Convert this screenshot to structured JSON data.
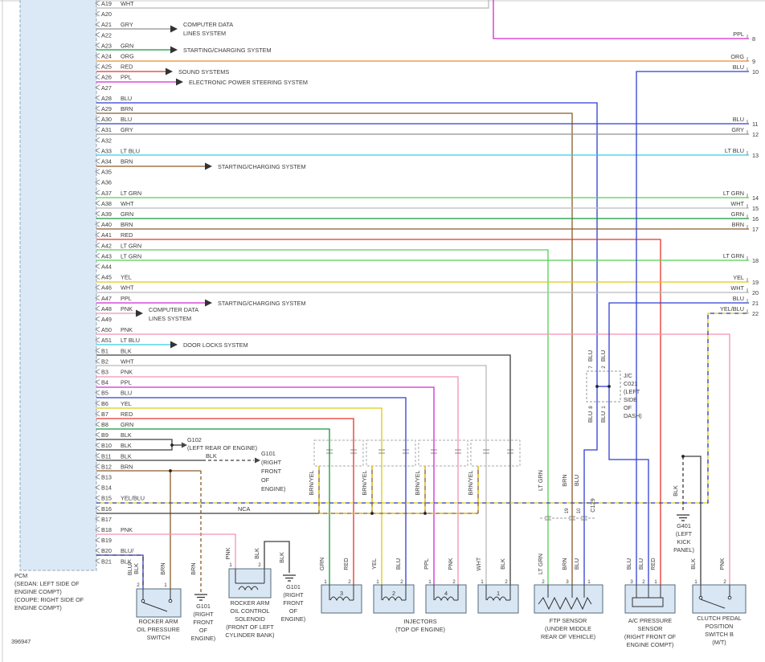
{
  "diagram_id": "396947",
  "pcm_caption": [
    "PCM",
    "(SEDAN: LEFT SIDE OF",
    "ENGINE COMPT)",
    "(COUPE: RIGHT SIDE OF",
    "ENGINE COMPT)"
  ],
  "pins": [
    {
      "pin": "A19",
      "color": "WHT"
    },
    {
      "pin": "A20",
      "color": ""
    },
    {
      "pin": "A21",
      "color": "GRY"
    },
    {
      "pin": "A22",
      "color": ""
    },
    {
      "pin": "A23",
      "color": "GRN"
    },
    {
      "pin": "A24",
      "color": "ORG"
    },
    {
      "pin": "A25",
      "color": "RED"
    },
    {
      "pin": "A26",
      "color": "PPL"
    },
    {
      "pin": "A27",
      "color": ""
    },
    {
      "pin": "A28",
      "color": "BLU"
    },
    {
      "pin": "A29",
      "color": "BRN"
    },
    {
      "pin": "A30",
      "color": "BLU"
    },
    {
      "pin": "A31",
      "color": "GRY"
    },
    {
      "pin": "A32",
      "color": ""
    },
    {
      "pin": "A33",
      "color": "LT BLU"
    },
    {
      "pin": "A34",
      "color": "BRN"
    },
    {
      "pin": "A35",
      "color": ""
    },
    {
      "pin": "A36",
      "color": ""
    },
    {
      "pin": "A37",
      "color": "LT GRN"
    },
    {
      "pin": "A38",
      "color": "WHT"
    },
    {
      "pin": "A39",
      "color": "GRN"
    },
    {
      "pin": "A40",
      "color": "BRN"
    },
    {
      "pin": "A41",
      "color": "RED"
    },
    {
      "pin": "A42",
      "color": "LT GRN"
    },
    {
      "pin": "A43",
      "color": "LT GRN"
    },
    {
      "pin": "A44",
      "color": ""
    },
    {
      "pin": "A45",
      "color": "YEL"
    },
    {
      "pin": "A46",
      "color": "WHT"
    },
    {
      "pin": "A47",
      "color": "PPL"
    },
    {
      "pin": "A48",
      "color": "PNK"
    },
    {
      "pin": "A49",
      "color": ""
    },
    {
      "pin": "A50",
      "color": "PNK"
    },
    {
      "pin": "A51",
      "color": "LT BLU"
    },
    {
      "pin": "B1",
      "color": "BLK"
    },
    {
      "pin": "B2",
      "color": "WHT"
    },
    {
      "pin": "B3",
      "color": "PNK"
    },
    {
      "pin": "B4",
      "color": "PPL"
    },
    {
      "pin": "B5",
      "color": "BLU"
    },
    {
      "pin": "B6",
      "color": "YEL"
    },
    {
      "pin": "B7",
      "color": "RED"
    },
    {
      "pin": "B8",
      "color": "GRN"
    },
    {
      "pin": "B9",
      "color": "BLK"
    },
    {
      "pin": "B10",
      "color": "BLK"
    },
    {
      "pin": "B11",
      "color": "BLK"
    },
    {
      "pin": "B12",
      "color": "BRN"
    },
    {
      "pin": "B13",
      "color": ""
    },
    {
      "pin": "B14",
      "color": ""
    },
    {
      "pin": "B15",
      "color": "YEL/BLU"
    },
    {
      "pin": "B16",
      "color": ""
    },
    {
      "pin": "B17",
      "color": ""
    },
    {
      "pin": "B18",
      "color": "PNK"
    },
    {
      "pin": "B19",
      "color": ""
    },
    {
      "pin": "B20",
      "color": "BLU/"
    },
    {
      "pin": "B21",
      "color": "BLK"
    }
  ],
  "systems": [
    {
      "lines": [
        "COMPUTER DATA",
        "LINES SYSTEM"
      ]
    },
    {
      "lines": [
        "STARTING/CHARGING SYSTEM"
      ]
    },
    {
      "lines": [
        "SOUND SYSTEMS"
      ]
    },
    {
      "lines": [
        "ELECTRONIC POWER STEERING SYSTEM"
      ]
    },
    {
      "lines": [
        "STARTING/CHARGING SYSTEM"
      ]
    },
    {
      "lines": [
        "STARTING/CHARGING SYSTEM"
      ]
    },
    {
      "lines": [
        "COMPUTER DATA",
        "LINES SYSTEM"
      ]
    },
    {
      "lines": [
        "DOOR LOCKS SYSTEM"
      ]
    }
  ],
  "right_refs": [
    {
      "num": "8",
      "color": "PPL"
    },
    {
      "num": "9",
      "color": "ORG"
    },
    {
      "num": "10",
      "color": "BLU"
    },
    {
      "num": "11",
      "color": "BLU"
    },
    {
      "num": "12",
      "color": "GRY"
    },
    {
      "num": "13",
      "color": "LT BLU"
    },
    {
      "num": "14",
      "color": "LT GRN"
    },
    {
      "num": "15",
      "color": "WHT"
    },
    {
      "num": "16",
      "color": "GRN"
    },
    {
      "num": "17",
      "color": "BRN"
    },
    {
      "num": "18",
      "color": "LT GRN"
    },
    {
      "num": "19",
      "color": "YEL"
    },
    {
      "num": "20",
      "color": "WHT"
    },
    {
      "num": "21",
      "color": "BLU"
    },
    {
      "num": "22",
      "color": "YEL/BLU"
    }
  ],
  "labels": {
    "nca": "NCA",
    "b11_blk": "BLK",
    "brnyel": "BRN/YEL",
    "inj_pin_colors": [
      [
        "GRN",
        "RED"
      ],
      [
        "YEL",
        "BLU"
      ],
      [
        "PPL",
        "PNK"
      ],
      [
        "WHT",
        "BLK"
      ]
    ],
    "switch_wires": [
      "BLU/",
      "BLK",
      "BRN"
    ],
    "switch_gnd_wire": "BRN",
    "sol_wires": [
      "PNK",
      "BLK"
    ],
    "sol_gnd_wire": "BLK",
    "ftp_wires": [
      "LT GRN",
      "BRN",
      "BLU"
    ],
    "ftp_wires_mid": [
      "LT GRN",
      "BRN",
      "BLU"
    ],
    "c129": {
      "label": "C129",
      "pins": [
        "19",
        "10"
      ]
    },
    "ac_wires": [
      "BLU",
      "BLU",
      "RED"
    ],
    "clutch_wires": [
      "BLK",
      "PNK"
    ],
    "g401_wire": "BLK"
  },
  "components": {
    "switch": {
      "caption": [
        "ROCKER ARM",
        "OIL PRESSURE",
        "SWITCH"
      ],
      "pins": [
        "2",
        "1"
      ]
    },
    "g101_a": {
      "caption": [
        "G101",
        "(RIGHT",
        "FRONT",
        "OF",
        "ENGINE)"
      ]
    },
    "solenoid": {
      "caption": [
        "ROCKER ARM",
        "OIL CONTROL",
        "SOLENOID",
        "(FRONT OF LEFT",
        "CYLINDER BANK)"
      ],
      "pins": [
        "1",
        "2"
      ]
    },
    "g101_b": {
      "caption": [
        "G101",
        "(RIGHT",
        "FRONT",
        "OF",
        "ENGINE)"
      ]
    },
    "injectors": {
      "caption": [
        "INJECTORS",
        "(TOP OF ENGINE)"
      ],
      "units": [
        "3",
        "2",
        "4",
        "1"
      ],
      "unit_pins": [
        "1",
        "2"
      ]
    },
    "ftp": {
      "caption": [
        "FTP SENSOR",
        "(UNDER MIDDLE",
        "REAR OF VEHICLE)"
      ],
      "pins": [
        "2",
        "3",
        "1"
      ]
    },
    "ac": {
      "caption": [
        "A/C PRESSURE",
        "SENSOR",
        "(RIGHT FRONT OF",
        "ENGINE COMPT)"
      ],
      "pins": [
        "3",
        "2",
        "1"
      ]
    },
    "clutch": {
      "caption": [
        "CLUTCH PEDAL",
        "POSITION",
        "SWITCH B",
        "(M/T)"
      ],
      "pins": [
        "1",
        "2"
      ]
    },
    "g401": {
      "caption": [
        "G401",
        "(LEFT",
        "KICK",
        "PANEL)"
      ]
    },
    "g102_ref": {
      "caption": [
        "G102",
        "(LEFT REAR OF ENGINE)"
      ]
    },
    "g101_ref": {
      "caption": [
        "G101",
        "(RIGHT",
        "FRONT",
        "OF",
        "ENGINE)"
      ]
    },
    "jc": {
      "caption": [
        "J/C",
        "C021",
        "(LEFT",
        "SIDE",
        "OF",
        "DASH)"
      ],
      "top_pins": [
        {
          "color": "BLU",
          "num": "7"
        },
        {
          "color": "BLU",
          "num": "2"
        }
      ],
      "bottom_pins": [
        {
          "color": "BLU",
          "num": "8"
        },
        {
          "color": "BLU",
          "num": "1"
        }
      ]
    }
  },
  "colors": {
    "WHT": "#b9b9b9",
    "GRY": "#8f8f8f",
    "BLK": "#3d3d3d",
    "RED": "#e63329",
    "ORG": "#ef8b2a",
    "YEL": "#ddca10",
    "GRN": "#15963c",
    "LT GRN": "#54d054",
    "BLU": "#2f3fd0",
    "LT BLU": "#35cde8",
    "BRN": "#8a5a2a",
    "PPL": "#d229d2",
    "PNK": "#f591b2"
  }
}
